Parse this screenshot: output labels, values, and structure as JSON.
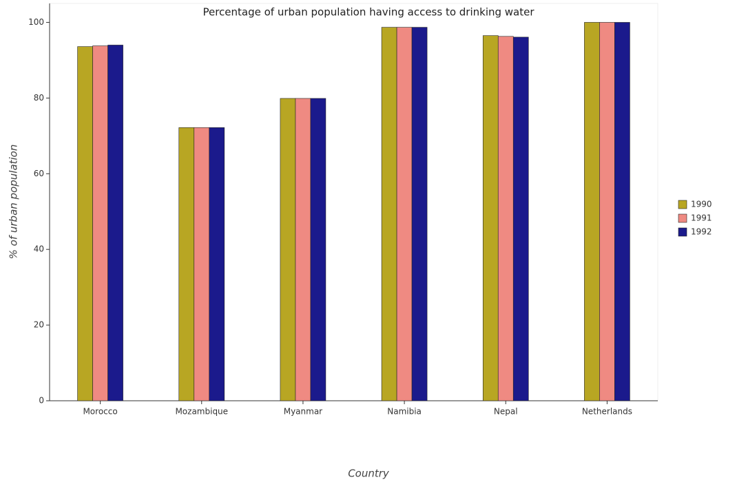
{
  "chart_data": {
    "type": "bar",
    "title": "Percentage of urban population having access to drinking water",
    "x_label": "Country",
    "y_label": "% of urban population",
    "categories": [
      "Morocco",
      "Mozambique",
      "Myanmar",
      "Namibia",
      "Nepal",
      "Netherlands"
    ],
    "series": [
      {
        "name": "1990",
        "color": "#b8a623",
        "values": [
          93.6,
          72.2,
          79.9,
          98.7,
          96.5,
          100
        ]
      },
      {
        "name": "1991",
        "color": "#ef8a82",
        "values": [
          93.8,
          72.2,
          79.9,
          98.7,
          96.3,
          100
        ]
      },
      {
        "name": "1992",
        "color": "#1b1a8c",
        "values": [
          94.0,
          72.2,
          79.9,
          98.7,
          96.1,
          100
        ]
      }
    ],
    "ylim": [
      0,
      105
    ],
    "yticks": [
      0,
      20,
      40,
      60,
      80,
      100
    ],
    "legend": "right"
  }
}
